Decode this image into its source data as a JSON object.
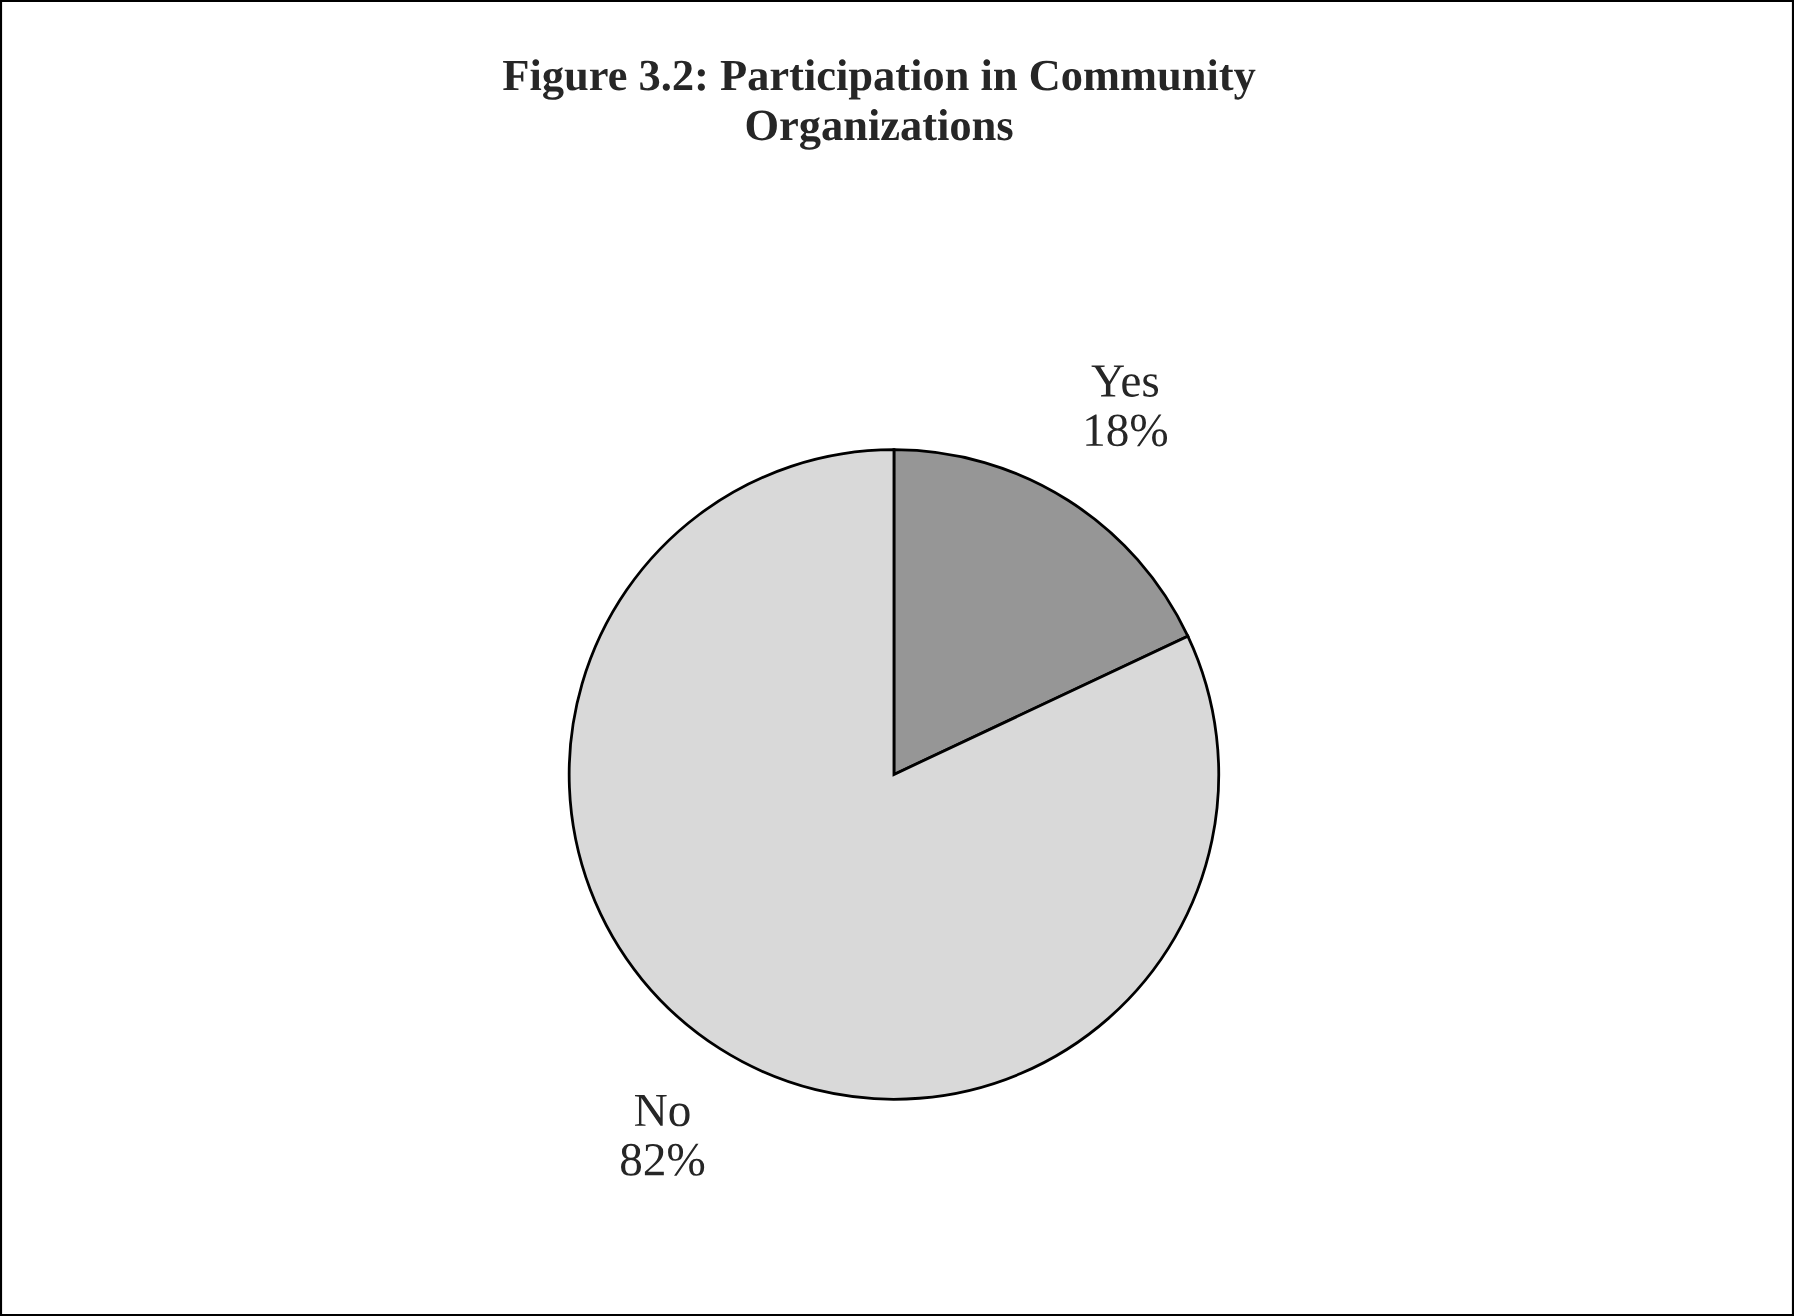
{
  "chart_data": {
    "type": "pie",
    "title": "Figure 3.2: Participation in Community\nOrganizations",
    "categories": [
      "Yes",
      "No"
    ],
    "values": [
      18,
      82
    ],
    "colors": [
      "#969696",
      "#d9d9d9"
    ],
    "value_labels": [
      "18%",
      "82%"
    ],
    "legend": false
  }
}
